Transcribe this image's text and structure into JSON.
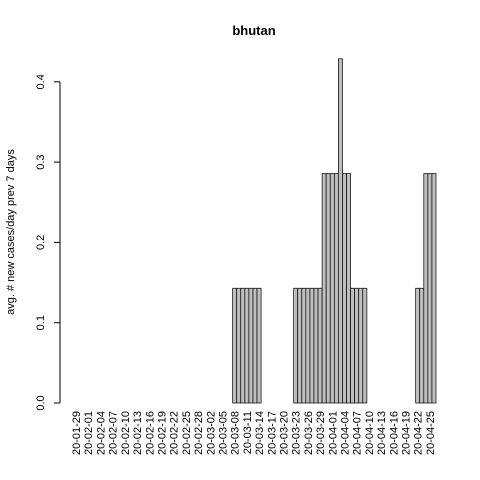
{
  "chart_data": {
    "type": "bar",
    "title": "bhutan",
    "xlabel": "",
    "ylabel": "avg. # new cases/day prev  7  days",
    "ylim": [
      0,
      0.43
    ],
    "yticks": [
      "0.0",
      "0.1",
      "0.2",
      "0.3",
      "0.4"
    ],
    "grid": false,
    "x_tick_labels": [
      "20-01-29",
      "20-02-01",
      "20-02-04",
      "20-02-07",
      "20-02-10",
      "20-02-13",
      "20-02-16",
      "20-02-19",
      "20-02-22",
      "20-02-25",
      "20-02-28",
      "20-03-02",
      "20-03-05",
      "20-03-08",
      "20-03-11",
      "20-03-14",
      "20-03-17",
      "20-03-20",
      "20-03-23",
      "20-03-26",
      "20-03-29",
      "20-04-01",
      "20-04-04",
      "20-04-07",
      "20-04-10",
      "20-04-13",
      "20-04-16",
      "20-04-19",
      "20-04-22",
      "20-04-25"
    ],
    "categories": [
      "20-01-29",
      "20-01-30",
      "20-01-31",
      "20-02-01",
      "20-02-02",
      "20-02-03",
      "20-02-04",
      "20-02-05",
      "20-02-06",
      "20-02-07",
      "20-02-08",
      "20-02-09",
      "20-02-10",
      "20-02-11",
      "20-02-12",
      "20-02-13",
      "20-02-14",
      "20-02-15",
      "20-02-16",
      "20-02-17",
      "20-02-18",
      "20-02-19",
      "20-02-20",
      "20-02-21",
      "20-02-22",
      "20-02-23",
      "20-02-24",
      "20-02-25",
      "20-02-26",
      "20-02-27",
      "20-02-28",
      "20-02-29",
      "20-03-01",
      "20-03-02",
      "20-03-03",
      "20-03-04",
      "20-03-05",
      "20-03-06",
      "20-03-07",
      "20-03-08",
      "20-03-09",
      "20-03-10",
      "20-03-11",
      "20-03-12",
      "20-03-13",
      "20-03-14",
      "20-03-15",
      "20-03-16",
      "20-03-17",
      "20-03-18",
      "20-03-19",
      "20-03-20",
      "20-03-21",
      "20-03-22",
      "20-03-23",
      "20-03-24",
      "20-03-25",
      "20-03-26",
      "20-03-27",
      "20-03-28",
      "20-03-29",
      "20-03-30",
      "20-03-31",
      "20-04-01",
      "20-04-02",
      "20-04-03",
      "20-04-04",
      "20-04-05",
      "20-04-06",
      "20-04-07",
      "20-04-08",
      "20-04-09",
      "20-04-10",
      "20-04-11",
      "20-04-12",
      "20-04-13",
      "20-04-14",
      "20-04-15",
      "20-04-16",
      "20-04-17",
      "20-04-18",
      "20-04-19",
      "20-04-20",
      "20-04-21",
      "20-04-22",
      "20-04-23",
      "20-04-24",
      "20-04-25",
      "20-04-26"
    ],
    "values": [
      0,
      0,
      0,
      0,
      0,
      0,
      0,
      0,
      0,
      0,
      0,
      0,
      0,
      0,
      0,
      0,
      0,
      0,
      0,
      0,
      0,
      0,
      0,
      0,
      0,
      0,
      0,
      0,
      0,
      0,
      0,
      0,
      0,
      0,
      0,
      0,
      0,
      0,
      0,
      0.1429,
      0.1429,
      0.1429,
      0.1429,
      0.1429,
      0.1429,
      0.1429,
      0,
      0,
      0,
      0,
      0,
      0,
      0,
      0,
      0.1429,
      0.1429,
      0.1429,
      0.1429,
      0.1429,
      0.1429,
      0.1429,
      0.2857,
      0.2857,
      0.2857,
      0.2857,
      0.4286,
      0.2857,
      0.2857,
      0.1429,
      0.1429,
      0.1429,
      0.1429,
      0,
      0,
      0,
      0,
      0,
      0,
      0,
      0,
      0,
      0,
      0,
      0,
      0.1429,
      0.1429,
      0.2857,
      0.2857,
      0.2857
    ]
  }
}
